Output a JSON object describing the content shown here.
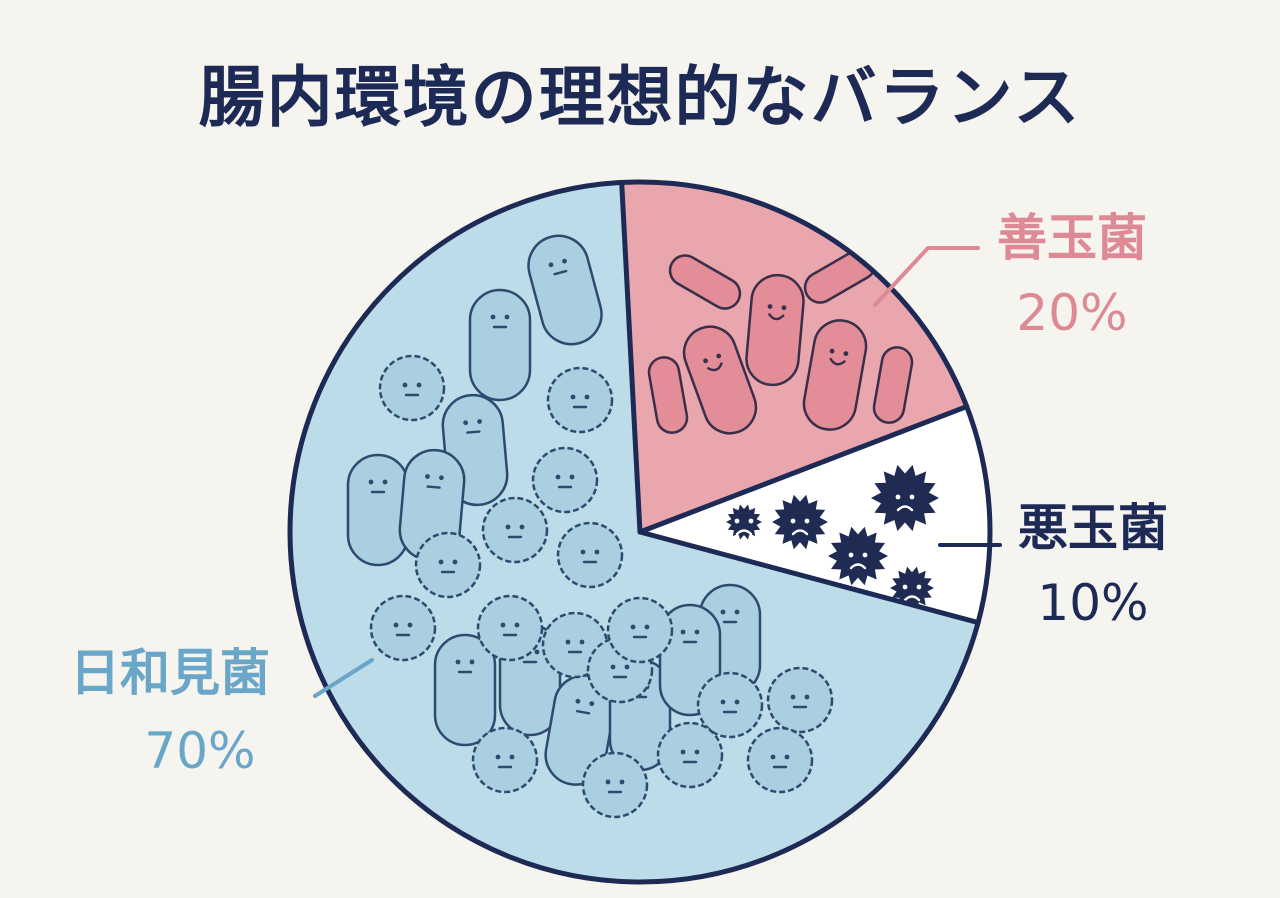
{
  "title": "腸内環境の理想的なバランス",
  "colors": {
    "title": "#1d2a55",
    "outline": "#1d2a55",
    "background": "#f6f4ee"
  },
  "chart_data": {
    "type": "pie",
    "title": "腸内環境の理想的なバランス",
    "legend": "none",
    "slices": [
      {
        "label": "善玉菌",
        "value": 20,
        "value_label": "20%",
        "color": "#eaa6ad",
        "label_color": "#de8a95",
        "icon": "smiling-rod-bacteria-icon"
      },
      {
        "label": "悪玉菌",
        "value": 10,
        "value_label": "10%",
        "color": "#ffffff",
        "label_color": "#1d2a55",
        "icon": "spiky-angry-germ-icon"
      },
      {
        "label": "日和見菌",
        "value": 70,
        "value_label": "70%",
        "color": "#bcdcea",
        "label_color": "#6aa6c8",
        "icon": "neutral-round-bacteria-icon"
      }
    ]
  }
}
